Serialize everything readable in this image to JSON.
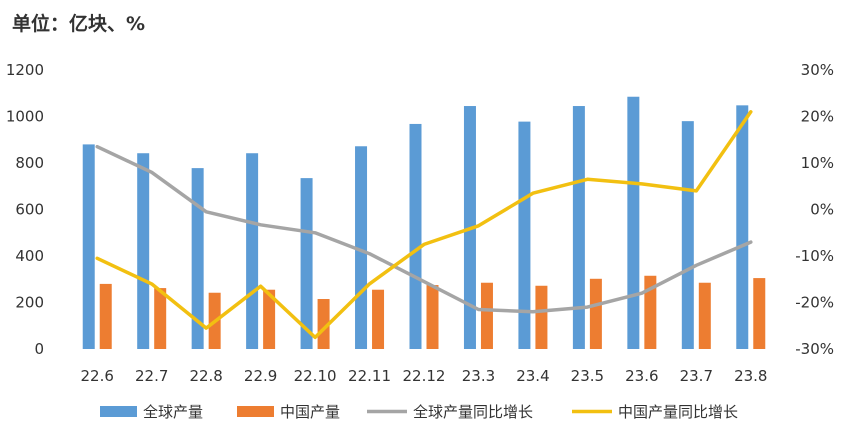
{
  "chart_data": {
    "type": "bar",
    "unit_label": "单位：亿块、%",
    "categories": [
      "22.6",
      "22.7",
      "22.8",
      "22.9",
      "22.10",
      "22.11",
      "22.12",
      "23.3",
      "23.4",
      "23.5",
      "23.6",
      "23.7",
      "23.8"
    ],
    "left_axis": {
      "min": 0,
      "max": 1200,
      "ticks": [
        "0",
        "200",
        "400",
        "600",
        "800",
        "1000",
        "1200"
      ]
    },
    "right_axis": {
      "min": -30,
      "max": 30,
      "ticks": [
        "-30%",
        "-20%",
        "-10%",
        "0%",
        "10%",
        "20%",
        "30%"
      ]
    },
    "series": [
      {
        "name": "全球产量",
        "kind": "bar",
        "axis": "left",
        "color": "#5B9BD5",
        "values": [
          880,
          842,
          778,
          842,
          735,
          872,
          968,
          1045,
          978,
          1045,
          1085,
          980,
          1048
        ]
      },
      {
        "name": "中国产量",
        "kind": "bar",
        "axis": "left",
        "color": "#ED7D31",
        "values": [
          280,
          262,
          242,
          255,
          215,
          255,
          275,
          285,
          272,
          302,
          315,
          285,
          305
        ]
      },
      {
        "name": "全球产量同比增长",
        "kind": "line",
        "axis": "right",
        "color": "#A5A5A5",
        "values": [
          13.5,
          8,
          -0.5,
          -3.3,
          -5,
          -9.5,
          -15.5,
          -21.5,
          -22,
          -21,
          -18,
          -12,
          -7
        ]
      },
      {
        "name": "中国产量同比增长",
        "kind": "line",
        "axis": "right",
        "color": "#F2C011",
        "values": [
          -10.5,
          -16,
          -25.5,
          -16.5,
          -27.5,
          -16,
          -7.5,
          -3.5,
          3.5,
          6.5,
          5.5,
          4,
          21
        ]
      }
    ],
    "legend_position": "bottom",
    "grid": false
  }
}
